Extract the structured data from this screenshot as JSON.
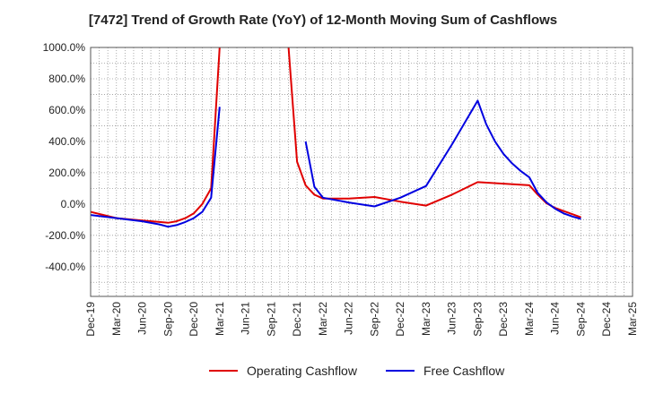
{
  "chart_data": {
    "type": "line",
    "title": "[7472]  Trend of Growth Rate (YoY) of 12-Month Moving Sum of Cashflows",
    "xlabel": "",
    "ylabel": "",
    "x_categories": [
      "Dec-19",
      "Mar-20",
      "Jun-20",
      "Sep-20",
      "Dec-20",
      "Mar-21",
      "Jun-21",
      "Sep-21",
      "Dec-21",
      "Mar-22",
      "Jun-22",
      "Sep-22",
      "Dec-22",
      "Mar-23",
      "Jun-23",
      "Sep-23",
      "Dec-23",
      "Mar-24",
      "Jun-24",
      "Sep-24",
      "Dec-24",
      "Mar-25"
    ],
    "y_ticks": [
      "1000.0%",
      "800.0%",
      "600.0%",
      "400.0%",
      "200.0%",
      "0.0%",
      "-200.0%",
      "-400.0%"
    ],
    "ylim": [
      -590,
      1000
    ],
    "grid": true,
    "legend_position": "bottom",
    "series": [
      {
        "name": "Operating Cashflow",
        "color": "#e00000",
        "points": [
          {
            "x": 0,
            "y": -50
          },
          {
            "x": 1,
            "y": -90
          },
          {
            "x": 2,
            "y": -105
          },
          {
            "x": 2.67,
            "y": -115
          },
          {
            "x": 3,
            "y": -120
          },
          {
            "x": 3.33,
            "y": -110
          },
          {
            "x": 3.67,
            "y": -90
          },
          {
            "x": 4,
            "y": -60
          },
          {
            "x": 4.33,
            "y": 0
          },
          {
            "x": 4.67,
            "y": 100
          },
          {
            "x": 5,
            "y": 1000
          },
          {
            "gap": true
          },
          {
            "x": 7.67,
            "y": 1000
          },
          {
            "x": 8,
            "y": 270
          },
          {
            "x": 8.33,
            "y": 120
          },
          {
            "x": 8.67,
            "y": 60
          },
          {
            "x": 9,
            "y": 35
          },
          {
            "x": 10,
            "y": 35
          },
          {
            "x": 11,
            "y": 45
          },
          {
            "x": 12,
            "y": 15
          },
          {
            "x": 13,
            "y": -10
          },
          {
            "x": 14,
            "y": 60
          },
          {
            "x": 15,
            "y": 140
          },
          {
            "x": 16,
            "y": 130
          },
          {
            "x": 17,
            "y": 120
          },
          {
            "x": 17.33,
            "y": 60
          },
          {
            "x": 17.67,
            "y": 5
          },
          {
            "x": 18,
            "y": -25
          },
          {
            "x": 18.33,
            "y": -45
          },
          {
            "x": 18.67,
            "y": -65
          },
          {
            "x": 19,
            "y": -85
          }
        ]
      },
      {
        "name": "Free Cashflow",
        "color": "#0000e0",
        "points": [
          {
            "x": 0,
            "y": -70
          },
          {
            "x": 1,
            "y": -90
          },
          {
            "x": 2,
            "y": -110
          },
          {
            "x": 2.67,
            "y": -130
          },
          {
            "x": 3,
            "y": -145
          },
          {
            "x": 3.33,
            "y": -135
          },
          {
            "x": 3.67,
            "y": -115
          },
          {
            "x": 4,
            "y": -90
          },
          {
            "x": 4.33,
            "y": -50
          },
          {
            "x": 4.67,
            "y": 40
          },
          {
            "x": 5,
            "y": 620
          },
          {
            "gap": true
          },
          {
            "x": 8.33,
            "y": 400
          },
          {
            "x": 8.67,
            "y": 110
          },
          {
            "x": 9,
            "y": 40
          },
          {
            "x": 10,
            "y": 10
          },
          {
            "x": 11,
            "y": -15
          },
          {
            "x": 12,
            "y": 40
          },
          {
            "x": 13,
            "y": 115
          },
          {
            "x": 14,
            "y": 380
          },
          {
            "x": 15,
            "y": 660
          },
          {
            "x": 15.33,
            "y": 510
          },
          {
            "x": 15.67,
            "y": 400
          },
          {
            "x": 16,
            "y": 320
          },
          {
            "x": 16.33,
            "y": 260
          },
          {
            "x": 16.67,
            "y": 210
          },
          {
            "x": 17,
            "y": 170
          },
          {
            "x": 17.33,
            "y": 70
          },
          {
            "x": 17.67,
            "y": 10
          },
          {
            "x": 18,
            "y": -30
          },
          {
            "x": 18.33,
            "y": -60
          },
          {
            "x": 18.67,
            "y": -80
          },
          {
            "x": 19,
            "y": -95
          }
        ]
      }
    ]
  }
}
